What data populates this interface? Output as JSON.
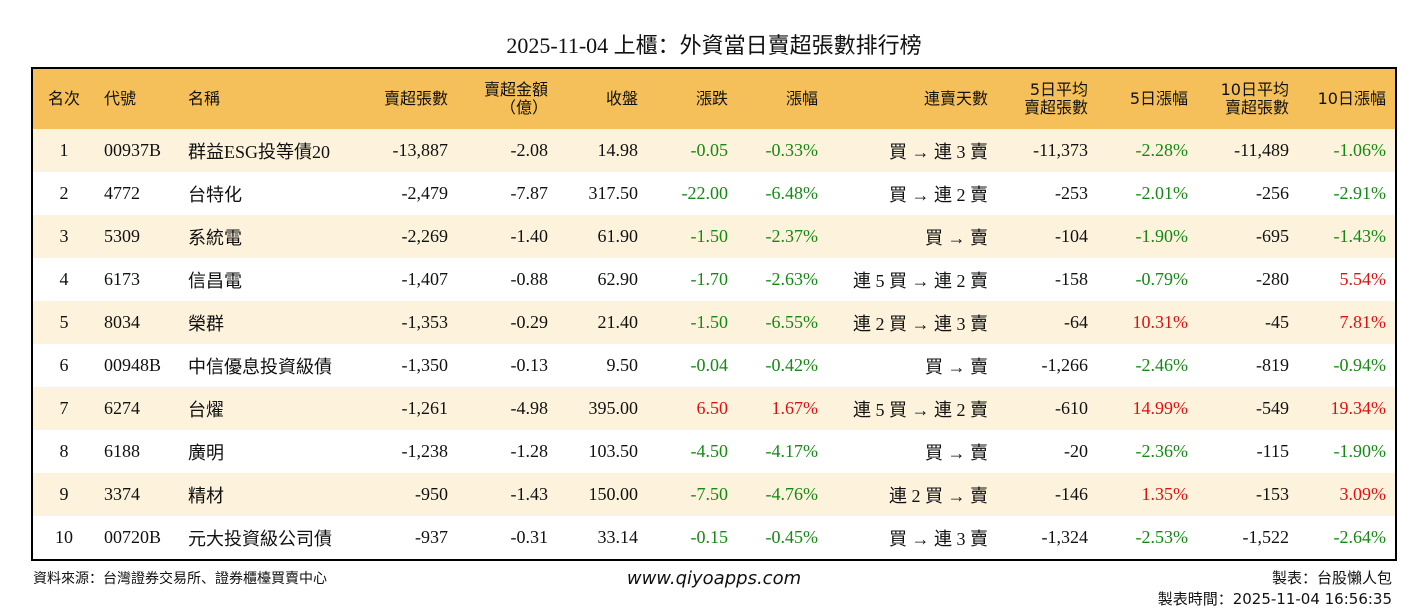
{
  "header": {
    "title": "2025-11-04 上櫃：外資當日賣超張數排行榜"
  },
  "table": {
    "columns": [
      "名次",
      "代號",
      "名稱",
      "賣超張數",
      "賣超金額\n（億）",
      "收盤",
      "漲跌",
      "漲幅",
      "連賣天數",
      "5日平均\n賣超張數",
      "5日漲幅",
      "10日平均\n賣超張數",
      "10日漲幅"
    ],
    "rows": [
      [
        "1",
        "00937B",
        "群益ESG投等債20",
        "-13,887",
        "-2.08",
        "14.98",
        "-0.05",
        "-0.33%",
        "買 → 連 3 賣",
        "-11,373",
        "-2.28%",
        "-11,489",
        "-1.06%"
      ],
      [
        "2",
        "4772",
        "台特化",
        "-2,479",
        "-7.87",
        "317.50",
        "-22.00",
        "-6.48%",
        "買 → 連 2 賣",
        "-253",
        "-2.01%",
        "-256",
        "-2.91%"
      ],
      [
        "3",
        "5309",
        "系統電",
        "-2,269",
        "-1.40",
        "61.90",
        "-1.50",
        "-2.37%",
        "買 → 賣",
        "-104",
        "-1.90%",
        "-695",
        "-1.43%"
      ],
      [
        "4",
        "6173",
        "信昌電",
        "-1,407",
        "-0.88",
        "62.90",
        "-1.70",
        "-2.63%",
        "連 5 買 → 連 2 賣",
        "-158",
        "-0.79%",
        "-280",
        "5.54%"
      ],
      [
        "5",
        "8034",
        "榮群",
        "-1,353",
        "-0.29",
        "21.40",
        "-1.50",
        "-6.55%",
        "連 2 買 → 連 3 賣",
        "-64",
        "10.31%",
        "-45",
        "7.81%"
      ],
      [
        "6",
        "00948B",
        "中信優息投資級債",
        "-1,350",
        "-0.13",
        "9.50",
        "-0.04",
        "-0.42%",
        "買 → 賣",
        "-1,266",
        "-2.46%",
        "-819",
        "-0.94%"
      ],
      [
        "7",
        "6274",
        "台燿",
        "-1,261",
        "-4.98",
        "395.00",
        "6.50",
        "1.67%",
        "連 5 買 → 連 2 賣",
        "-610",
        "14.99%",
        "-549",
        "19.34%"
      ],
      [
        "8",
        "6188",
        "廣明",
        "-1,238",
        "-1.28",
        "103.50",
        "-4.50",
        "-4.17%",
        "買 → 賣",
        "-20",
        "-2.36%",
        "-115",
        "-1.90%"
      ],
      [
        "9",
        "3374",
        "精材",
        "-950",
        "-1.43",
        "150.00",
        "-7.50",
        "-4.76%",
        "連 2 買 → 賣",
        "-146",
        "1.35%",
        "-153",
        "3.09%"
      ],
      [
        "10",
        "00720B",
        "元大投資級公司債",
        "-937",
        "-0.31",
        "33.14",
        "-0.15",
        "-0.45%",
        "買 → 連 3 賣",
        "-1,324",
        "-2.53%",
        "-1,522",
        "-2.64%"
      ]
    ]
  },
  "footer": {
    "source": "資料來源：台灣證券交易所、證券櫃檯買賣中心",
    "website": "www.qiyoapps.com",
    "maker": "製表：台股懶人包",
    "time": "製表時間：2025-11-04 16:56:35"
  }
}
